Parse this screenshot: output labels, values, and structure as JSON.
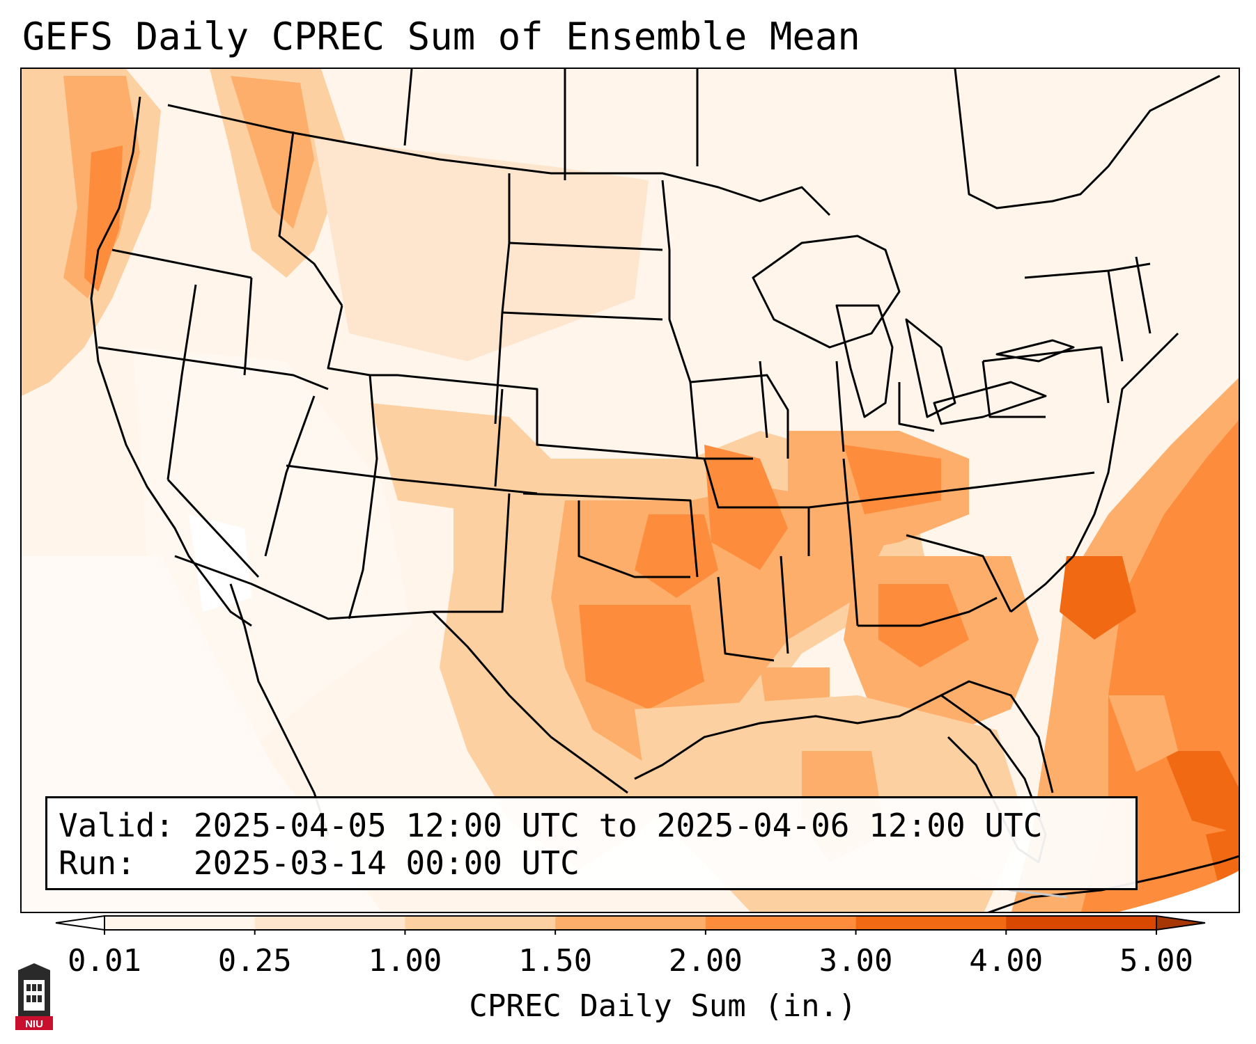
{
  "title": "GEFS Daily CPREC Sum of Ensemble Mean",
  "info": {
    "valid_label": "Valid:",
    "valid_value": "2025-04-05 12:00 UTC to 2025-04-06 12:00 UTC",
    "run_label": "Run:",
    "run_value": "2025-03-14 00:00 UTC"
  },
  "colorbar": {
    "label": "CPREC Daily Sum (in.)",
    "ticks": [
      "0.01",
      "0.25",
      "1.00",
      "1.50",
      "2.00",
      "3.00",
      "4.00",
      "5.00"
    ],
    "colors": [
      "#fff5eb",
      "#fee6ce",
      "#fdd0a2",
      "#fdae6b",
      "#fd8d3c",
      "#f16913",
      "#d94801",
      "#a63603"
    ],
    "extend": "both"
  },
  "logo": {
    "text": "NIU"
  },
  "map": {
    "region": "Contiguous United States",
    "field": "CPREC"
  }
}
